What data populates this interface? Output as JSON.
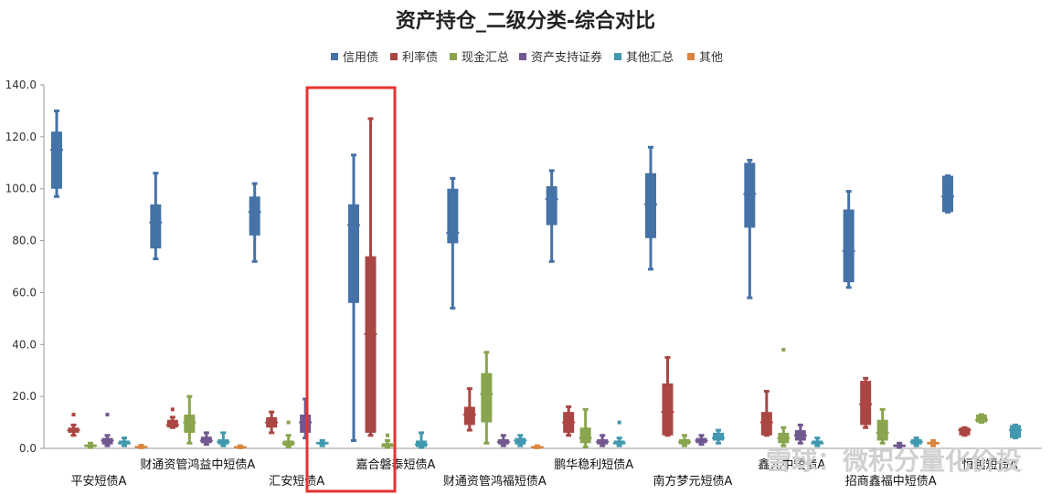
{
  "chart_data": {
    "type": "box",
    "title": "资产持仓_二级分类-综合对比",
    "ylim": [
      0,
      140
    ],
    "yticks": [
      "0.0",
      "20.0",
      "40.0",
      "60.0",
      "80.0",
      "100.0",
      "120.0",
      "140.0"
    ],
    "legend_position": "top",
    "series": [
      {
        "name": "信用债",
        "color": "#4572a7"
      },
      {
        "name": "利率债",
        "color": "#aa4643"
      },
      {
        "name": "现金汇总",
        "color": "#89a54e"
      },
      {
        "name": "资产支持证券",
        "color": "#71588f"
      },
      {
        "name": "其他汇总",
        "color": "#4198af"
      },
      {
        "name": "其他",
        "color": "#db843d"
      }
    ],
    "categories": [
      "平安短债A",
      "财通资管鸿益中短债A",
      "汇安短债A",
      "嘉合磐泰短债A",
      "财通资管鸿福短债A",
      "鹏华稳利短债A",
      "南方梦元短债A",
      "鑫元中短债A",
      "招商鑫福中短债A",
      "恒越短债A"
    ],
    "highlighted_category": "嘉合磐泰短债A",
    "boxes": [
      [
        {
          "min": 97,
          "q1": 100,
          "median": 115,
          "q3": 122,
          "max": 130
        },
        {
          "min": 5,
          "q1": 6,
          "median": 7,
          "q3": 8,
          "max": 9,
          "outliers": [
            13
          ]
        },
        {
          "min": 0.3,
          "q1": 0.5,
          "median": 1,
          "q3": 1.5,
          "max": 2
        },
        {
          "min": 1,
          "q1": 1.5,
          "median": 3,
          "q3": 4,
          "max": 5,
          "outliers": [
            13
          ]
        },
        {
          "min": 1,
          "q1": 1.5,
          "median": 2,
          "q3": 3,
          "max": 4
        },
        {
          "min": 0.2,
          "q1": 0.3,
          "median": 0.6,
          "q3": 0.9,
          "max": 1.2
        }
      ],
      [
        {
          "min": 73,
          "q1": 77,
          "median": 87,
          "q3": 94,
          "max": 106
        },
        {
          "min": 8,
          "q1": 8,
          "median": 9,
          "q3": 11,
          "max": 12,
          "outliers": [
            15
          ]
        },
        {
          "min": 2,
          "q1": 6,
          "median": 10,
          "q3": 13,
          "max": 20
        },
        {
          "min": 1.5,
          "q1": 2,
          "median": 3,
          "q3": 4.5,
          "max": 6
        },
        {
          "min": 1,
          "q1": 1.5,
          "median": 2.5,
          "q3": 3.5,
          "max": 6
        },
        {
          "min": 0.2,
          "q1": 0.3,
          "median": 0.5,
          "q3": 0.8,
          "max": 1
        }
      ],
      [
        {
          "min": 72,
          "q1": 82,
          "median": 91,
          "q3": 97,
          "max": 102
        },
        {
          "min": 6,
          "q1": 8,
          "median": 10,
          "q3": 12,
          "max": 14
        },
        {
          "min": 0.5,
          "q1": 1,
          "median": 2,
          "q3": 3,
          "max": 5,
          "outliers": [
            10
          ]
        },
        {
          "min": 4,
          "q1": 6,
          "median": 10,
          "q3": 13,
          "max": 19
        },
        {
          "min": 1,
          "q1": 1.5,
          "median": 2,
          "q3": 2.5,
          "max": 3
        },
        null
      ],
      [
        {
          "min": 3,
          "q1": 56,
          "median": 86,
          "q3": 94,
          "max": 113
        },
        {
          "min": 5,
          "q1": 6,
          "median": 44,
          "q3": 74,
          "max": 127
        },
        {
          "min": 0.3,
          "q1": 0.5,
          "median": 1,
          "q3": 2,
          "max": 3,
          "outliers": [
            5
          ]
        },
        null,
        {
          "min": 0.3,
          "q1": 0.5,
          "median": 1.5,
          "q3": 3,
          "max": 6
        },
        null
      ],
      [
        {
          "min": 54,
          "q1": 79,
          "median": 83,
          "q3": 100,
          "max": 104
        },
        {
          "min": 7,
          "q1": 9,
          "median": 13,
          "q3": 16,
          "max": 23
        },
        {
          "min": 2,
          "q1": 10,
          "median": 21,
          "q3": 29,
          "max": 37
        },
        {
          "min": 1,
          "q1": 1.5,
          "median": 2.5,
          "q3": 3.5,
          "max": 5
        },
        {
          "min": 1,
          "q1": 1.5,
          "median": 3,
          "q3": 4,
          "max": 5
        },
        {
          "min": 0.2,
          "q1": 0.3,
          "median": 0.5,
          "q3": 0.8,
          "max": 1
        }
      ],
      [
        {
          "min": 72,
          "q1": 86,
          "median": 96,
          "q3": 101,
          "max": 107
        },
        {
          "min": 5,
          "q1": 6,
          "median": 10,
          "q3": 14,
          "max": 16
        },
        {
          "min": 0.5,
          "q1": 2,
          "median": 4,
          "q3": 8,
          "max": 15
        },
        {
          "min": 1,
          "q1": 1.5,
          "median": 2.5,
          "q3": 3.5,
          "max": 5
        },
        {
          "min": 1,
          "q1": 1.5,
          "median": 2,
          "q3": 3,
          "max": 4,
          "outliers": [
            10
          ]
        },
        null
      ],
      [
        {
          "min": 69,
          "q1": 81,
          "median": 94,
          "q3": 106,
          "max": 116
        },
        {
          "min": 5,
          "q1": 5,
          "median": 14,
          "q3": 25,
          "max": 35
        },
        {
          "min": 1,
          "q1": 1.5,
          "median": 2.5,
          "q3": 3.5,
          "max": 5
        },
        {
          "min": 1.5,
          "q1": 2,
          "median": 3,
          "q3": 4,
          "max": 5
        },
        {
          "min": 2,
          "q1": 3,
          "median": 4,
          "q3": 6,
          "max": 7
        },
        null
      ],
      [
        {
          "min": 58,
          "q1": 85,
          "median": 98,
          "q3": 110,
          "max": 111
        },
        {
          "min": 5,
          "q1": 5,
          "median": 10,
          "q3": 14,
          "max": 22
        },
        {
          "min": 1,
          "q1": 2,
          "median": 4,
          "q3": 6,
          "max": 8,
          "outliers": [
            38
          ]
        },
        {
          "min": 2,
          "q1": 3,
          "median": 5,
          "q3": 7,
          "max": 9
        },
        {
          "min": 1,
          "q1": 1.5,
          "median": 2,
          "q3": 3,
          "max": 4
        },
        null
      ],
      [
        {
          "min": 62,
          "q1": 64,
          "median": 76,
          "q3": 92,
          "max": 99
        },
        {
          "min": 8,
          "q1": 9,
          "median": 17,
          "q3": 26,
          "max": 27
        },
        {
          "min": 2,
          "q1": 3,
          "median": 6,
          "q3": 11,
          "max": 15
        },
        {
          "min": 0.3,
          "q1": 0.5,
          "median": 1,
          "q3": 1.5,
          "max": 2
        },
        {
          "min": 1,
          "q1": 1.5,
          "median": 2.5,
          "q3": 3.5,
          "max": 4
        },
        {
          "min": 1,
          "q1": 1.5,
          "median": 2,
          "q3": 2.5,
          "max": 3
        }
      ],
      [
        {
          "min": 91,
          "q1": 91,
          "median": 97,
          "q3": 105,
          "max": 105
        },
        {
          "min": 5,
          "q1": 5,
          "median": 7,
          "q3": 8,
          "max": 8
        },
        {
          "min": 10,
          "q1": 10,
          "median": 11,
          "q3": 13,
          "max": 13
        },
        null,
        {
          "min": 4,
          "q1": 4,
          "median": 7,
          "q3": 9,
          "max": 9
        },
        null
      ]
    ]
  },
  "watermark": "雪球：微积分量化价投"
}
